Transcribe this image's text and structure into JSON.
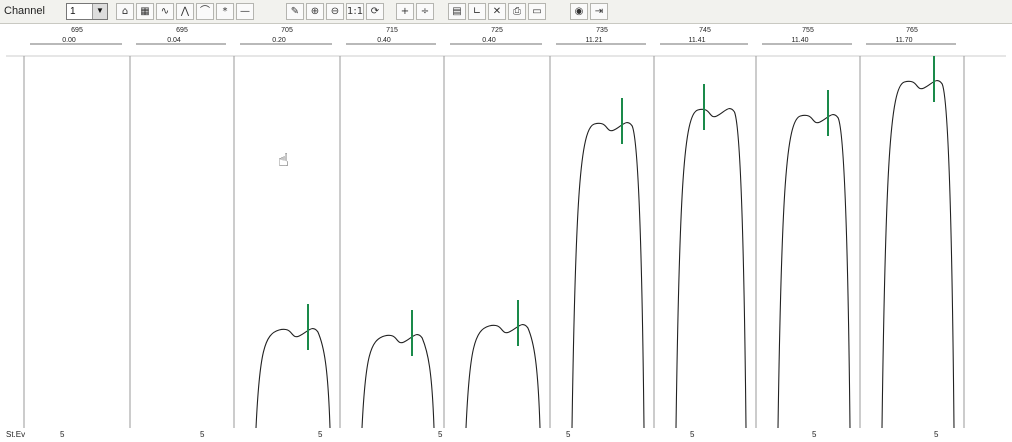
{
  "toolbar": {
    "channel_label": "Channel",
    "channel_value": "1",
    "buttons": [
      {
        "name": "open-icon",
        "glyph": "⌂"
      },
      {
        "name": "grid-icon",
        "glyph": "▦"
      },
      {
        "name": "wave-icon",
        "glyph": "∿"
      },
      {
        "name": "peak-icon",
        "glyph": "⋀"
      },
      {
        "name": "curve-icon",
        "glyph": "⌒"
      },
      {
        "name": "marker-icon",
        "glyph": "*"
      },
      {
        "name": "line-icon",
        "glyph": "—"
      },
      {
        "name": "tool-icon",
        "glyph": "✎"
      },
      {
        "name": "zoom-in-icon",
        "glyph": "⊕"
      },
      {
        "name": "zoom-out-icon",
        "glyph": "⊖"
      },
      {
        "name": "zoom-reset-icon",
        "glyph": "1:1"
      },
      {
        "name": "refresh-icon",
        "glyph": "⟳"
      },
      {
        "name": "cursor-add-icon",
        "glyph": "+"
      },
      {
        "name": "cursor-remove-icon",
        "glyph": "÷"
      },
      {
        "name": "table-icon",
        "glyph": "▤"
      },
      {
        "name": "axis-icon",
        "glyph": "∟"
      },
      {
        "name": "close-icon",
        "glyph": "✕"
      },
      {
        "name": "print-icon",
        "glyph": "⎙"
      },
      {
        "name": "window-icon",
        "glyph": "▭"
      },
      {
        "name": "eye-icon",
        "glyph": "◉"
      },
      {
        "name": "exit-icon",
        "glyph": "⇥"
      }
    ]
  },
  "segments": [
    {
      "id": "695",
      "value": "0.00"
    },
    {
      "id": "695",
      "value": "0.04"
    },
    {
      "id": "705",
      "value": "0.20"
    },
    {
      "id": "715",
      "value": "0.40"
    },
    {
      "id": "725",
      "value": "0.40"
    },
    {
      "id": "735",
      "value": "11.21"
    },
    {
      "id": "745",
      "value": "11.41"
    },
    {
      "id": "755",
      "value": "11.40"
    },
    {
      "id": "765",
      "value": "11.70"
    }
  ],
  "status": {
    "left_text": "St.Ev",
    "ticks": [
      "5",
      "5",
      "5",
      "5",
      "5",
      "5",
      "5",
      "5"
    ]
  },
  "colors": {
    "waveform": "#222222",
    "cursor": "#1a8a4a",
    "divider": "#9a9a9a"
  }
}
